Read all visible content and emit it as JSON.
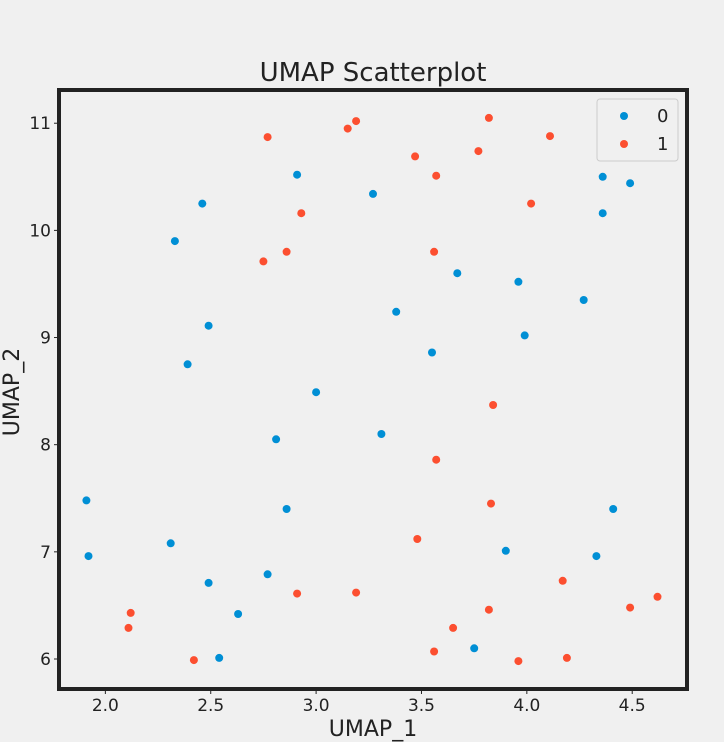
{
  "chart_data": {
    "type": "scatter",
    "title": "UMAP Scatterplot",
    "xlabel": "UMAP_1",
    "ylabel": "UMAP_2",
    "xlim": [
      1.78,
      4.76
    ],
    "ylim": [
      5.72,
      11.31
    ],
    "xticks": [
      2.0,
      2.5,
      3.0,
      3.5,
      4.0,
      4.5
    ],
    "xtick_labels": [
      "2.0",
      "2.5",
      "3.0",
      "3.5",
      "4.0",
      "4.5"
    ],
    "yticks": [
      6,
      7,
      8,
      9,
      10,
      11
    ],
    "ytick_labels": [
      "6",
      "7",
      "8",
      "9",
      "10",
      "11"
    ],
    "grid": false,
    "legend_position": "top-right",
    "background": "#f0f0f0",
    "frame_color": "#222222",
    "series": [
      {
        "name": "0",
        "color": "#008fd5",
        "points": [
          {
            "x": 2.46,
            "y": 10.25
          },
          {
            "x": 2.91,
            "y": 10.52
          },
          {
            "x": 3.27,
            "y": 10.34
          },
          {
            "x": 4.36,
            "y": 10.5
          },
          {
            "x": 4.49,
            "y": 10.44
          },
          {
            "x": 4.36,
            "y": 10.16
          },
          {
            "x": 2.33,
            "y": 9.9
          },
          {
            "x": 3.67,
            "y": 9.6
          },
          {
            "x": 3.96,
            "y": 9.52
          },
          {
            "x": 4.27,
            "y": 9.35
          },
          {
            "x": 3.38,
            "y": 9.24
          },
          {
            "x": 2.49,
            "y": 9.11
          },
          {
            "x": 3.99,
            "y": 9.02
          },
          {
            "x": 3.55,
            "y": 8.86
          },
          {
            "x": 2.39,
            "y": 8.75
          },
          {
            "x": 3.0,
            "y": 8.49
          },
          {
            "x": 3.31,
            "y": 8.1
          },
          {
            "x": 2.81,
            "y": 8.05
          },
          {
            "x": 1.91,
            "y": 7.48
          },
          {
            "x": 2.86,
            "y": 7.4
          },
          {
            "x": 4.41,
            "y": 7.4
          },
          {
            "x": 2.31,
            "y": 7.08
          },
          {
            "x": 3.9,
            "y": 7.01
          },
          {
            "x": 1.92,
            "y": 6.96
          },
          {
            "x": 4.33,
            "y": 6.96
          },
          {
            "x": 2.77,
            "y": 6.79
          },
          {
            "x": 2.49,
            "y": 6.71
          },
          {
            "x": 2.63,
            "y": 6.42
          },
          {
            "x": 3.75,
            "y": 6.1
          },
          {
            "x": 2.54,
            "y": 6.01
          }
        ]
      },
      {
        "name": "1",
        "color": "#fc4f30",
        "points": [
          {
            "x": 3.82,
            "y": 11.05
          },
          {
            "x": 3.19,
            "y": 11.02
          },
          {
            "x": 3.15,
            "y": 10.95
          },
          {
            "x": 2.77,
            "y": 10.87
          },
          {
            "x": 4.11,
            "y": 10.88
          },
          {
            "x": 3.77,
            "y": 10.74
          },
          {
            "x": 3.47,
            "y": 10.69
          },
          {
            "x": 3.57,
            "y": 10.51
          },
          {
            "x": 4.02,
            "y": 10.25
          },
          {
            "x": 2.93,
            "y": 10.16
          },
          {
            "x": 2.86,
            "y": 9.8
          },
          {
            "x": 3.56,
            "y": 9.8
          },
          {
            "x": 2.75,
            "y": 9.71
          },
          {
            "x": 3.84,
            "y": 8.37
          },
          {
            "x": 3.57,
            "y": 7.86
          },
          {
            "x": 3.83,
            "y": 7.45
          },
          {
            "x": 3.48,
            "y": 7.12
          },
          {
            "x": 4.17,
            "y": 6.73
          },
          {
            "x": 4.62,
            "y": 6.58
          },
          {
            "x": 2.91,
            "y": 6.61
          },
          {
            "x": 3.19,
            "y": 6.62
          },
          {
            "x": 4.49,
            "y": 6.48
          },
          {
            "x": 3.82,
            "y": 6.46
          },
          {
            "x": 2.12,
            "y": 6.43
          },
          {
            "x": 2.11,
            "y": 6.29
          },
          {
            "x": 3.65,
            "y": 6.29
          },
          {
            "x": 3.56,
            "y": 6.07
          },
          {
            "x": 4.19,
            "y": 6.01
          },
          {
            "x": 2.42,
            "y": 5.99
          },
          {
            "x": 3.96,
            "y": 5.98
          }
        ]
      }
    ]
  }
}
